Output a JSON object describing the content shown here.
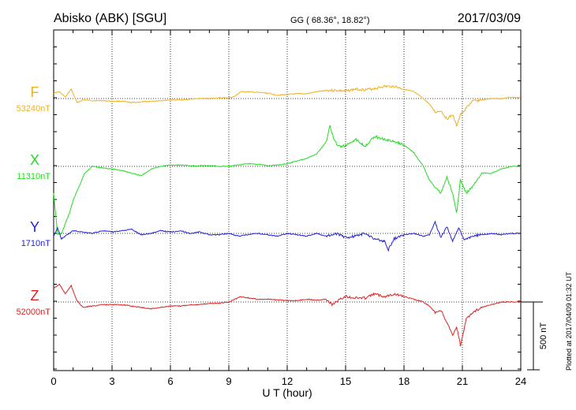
{
  "header": {
    "station": "Abisko (ABK)  [SGU]",
    "coords": "GG ( 68.36°,  18.82°)",
    "date": "2017/03/09"
  },
  "footer_note": "Plotted at 2017/04/09 01:32 UT",
  "scale_label": "500 nT",
  "chart_data": {
    "type": "line",
    "xlabel": "U T (hour)",
    "xlim": [
      0,
      24
    ],
    "xticks": [
      "0",
      "3",
      "6",
      "9",
      "12",
      "15",
      "18",
      "21",
      "24"
    ],
    "grid": true,
    "scale_nT": 500,
    "components": [
      {
        "name": "F",
        "baseline_label": "53240nT",
        "baseline_nT": 53240,
        "color": "#f0b020",
        "x": [
          0,
          0.3,
          0.6,
          0.9,
          1.2,
          1.5,
          2,
          2.5,
          3,
          3.5,
          4,
          4.5,
          5,
          5.5,
          6,
          6.5,
          7,
          7.5,
          8,
          8.5,
          9,
          9.3,
          9.6,
          10,
          10.5,
          11,
          11.5,
          12,
          12.5,
          13,
          13.5,
          14,
          14.5,
          15,
          15.5,
          16,
          16.5,
          17,
          17.5,
          18,
          18.5,
          19,
          19.3,
          19.6,
          19.9,
          20.2,
          20.5,
          20.7,
          20.9,
          21.2,
          21.5,
          22,
          22.5,
          23,
          23.5,
          24
        ],
        "y": [
          40,
          50,
          10,
          70,
          -30,
          -10,
          -15,
          -15,
          -20,
          -20,
          -30,
          -25,
          -20,
          -15,
          -10,
          -10,
          -5,
          0,
          0,
          5,
          5,
          15,
          50,
          50,
          45,
          40,
          25,
          30,
          35,
          35,
          50,
          60,
          60,
          55,
          70,
          65,
          75,
          90,
          90,
          70,
          50,
          0,
          -40,
          -100,
          -90,
          -150,
          -120,
          -200,
          -120,
          -70,
          -20,
          -10,
          0,
          0,
          10,
          5
        ]
      },
      {
        "name": "X",
        "baseline_label": "11310nT",
        "baseline_nT": 11310,
        "color": "#22dd22",
        "x": [
          0,
          0.2,
          0.4,
          0.6,
          0.8,
          1,
          1.3,
          1.6,
          2,
          2.5,
          3,
          3.5,
          4,
          4.5,
          5,
          5.5,
          6,
          6.5,
          7,
          7.5,
          8,
          8.5,
          9,
          9.5,
          10,
          10.5,
          11,
          11.5,
          12,
          12.5,
          13,
          13.5,
          14,
          14.2,
          14.4,
          14.6,
          15,
          15.5,
          16,
          16.5,
          17,
          17.5,
          18,
          18.5,
          19,
          19.3,
          19.6,
          19.9,
          20.2,
          20.5,
          20.7,
          20.9,
          21.2,
          21.5,
          22,
          22.5,
          23,
          23.5,
          24
        ],
        "y": [
          -200,
          -500,
          -500,
          -420,
          -350,
          -250,
          -150,
          -50,
          0,
          -10,
          -20,
          -30,
          -50,
          -70,
          -20,
          0,
          10,
          10,
          5,
          5,
          5,
          0,
          0,
          10,
          20,
          15,
          5,
          10,
          20,
          40,
          60,
          90,
          180,
          300,
          200,
          150,
          150,
          200,
          150,
          220,
          200,
          180,
          160,
          100,
          0,
          -100,
          -150,
          -200,
          -80,
          -200,
          -350,
          -100,
          -200,
          -150,
          -50,
          -50,
          -20,
          0,
          0
        ]
      },
      {
        "name": "Y",
        "baseline_label": "1710nT",
        "baseline_nT": 1710,
        "color": "#2222dd",
        "x": [
          0,
          0.2,
          0.4,
          0.6,
          0.8,
          1,
          1.5,
          2,
          2.5,
          3,
          3.5,
          4,
          4.5,
          5,
          5.5,
          6,
          6.5,
          7,
          7.5,
          8,
          8.5,
          9,
          9.5,
          10,
          10.5,
          11,
          11.5,
          12,
          12.5,
          13,
          13.5,
          14,
          14.5,
          15,
          15.5,
          16,
          16.5,
          17,
          17.2,
          17.5,
          18,
          18.5,
          19,
          19.3,
          19.6,
          19.9,
          20.2,
          20.5,
          20.8,
          21.1,
          21.5,
          22,
          22.5,
          23,
          23.5,
          24
        ],
        "y": [
          -20,
          40,
          -40,
          -20,
          0,
          20,
          10,
          0,
          20,
          10,
          20,
          30,
          -10,
          0,
          20,
          10,
          20,
          0,
          10,
          -10,
          -10,
          0,
          -20,
          -10,
          0,
          -10,
          -20,
          0,
          -10,
          -20,
          0,
          -20,
          0,
          -30,
          -20,
          0,
          -40,
          -60,
          -120,
          -40,
          -10,
          0,
          -20,
          -10,
          80,
          -30,
          50,
          -60,
          40,
          -50,
          -20,
          -10,
          0,
          -10,
          0,
          0
        ]
      },
      {
        "name": "Z",
        "baseline_label": "52000nT",
        "baseline_nT": 52000,
        "color": "#dd2222",
        "x": [
          0,
          0.3,
          0.6,
          0.9,
          1.2,
          1.5,
          2,
          2.5,
          3,
          3.5,
          4,
          4.5,
          5,
          5.5,
          6,
          6.5,
          7,
          7.5,
          8,
          8.5,
          9,
          9.3,
          9.6,
          10,
          10.5,
          11,
          11.5,
          12,
          12.5,
          13,
          13.5,
          14,
          14.3,
          14.6,
          15,
          15.5,
          16,
          16.5,
          17,
          17.5,
          18,
          18.5,
          19,
          19.3,
          19.6,
          19.9,
          20.2,
          20.5,
          20.7,
          20.9,
          21.2,
          21.5,
          22,
          22.5,
          23,
          23.5,
          24
        ],
        "y": [
          100,
          130,
          60,
          120,
          10,
          -40,
          -30,
          -20,
          -20,
          -20,
          -30,
          -40,
          -50,
          -40,
          -30,
          -30,
          -20,
          -20,
          -10,
          -10,
          0,
          20,
          40,
          30,
          20,
          20,
          15,
          10,
          10,
          20,
          15,
          20,
          -20,
          10,
          40,
          30,
          30,
          60,
          40,
          60,
          40,
          20,
          0,
          -30,
          -80,
          -60,
          -150,
          -250,
          -180,
          -320,
          -130,
          -80,
          -40,
          -20,
          0,
          0,
          0
        ]
      }
    ]
  }
}
